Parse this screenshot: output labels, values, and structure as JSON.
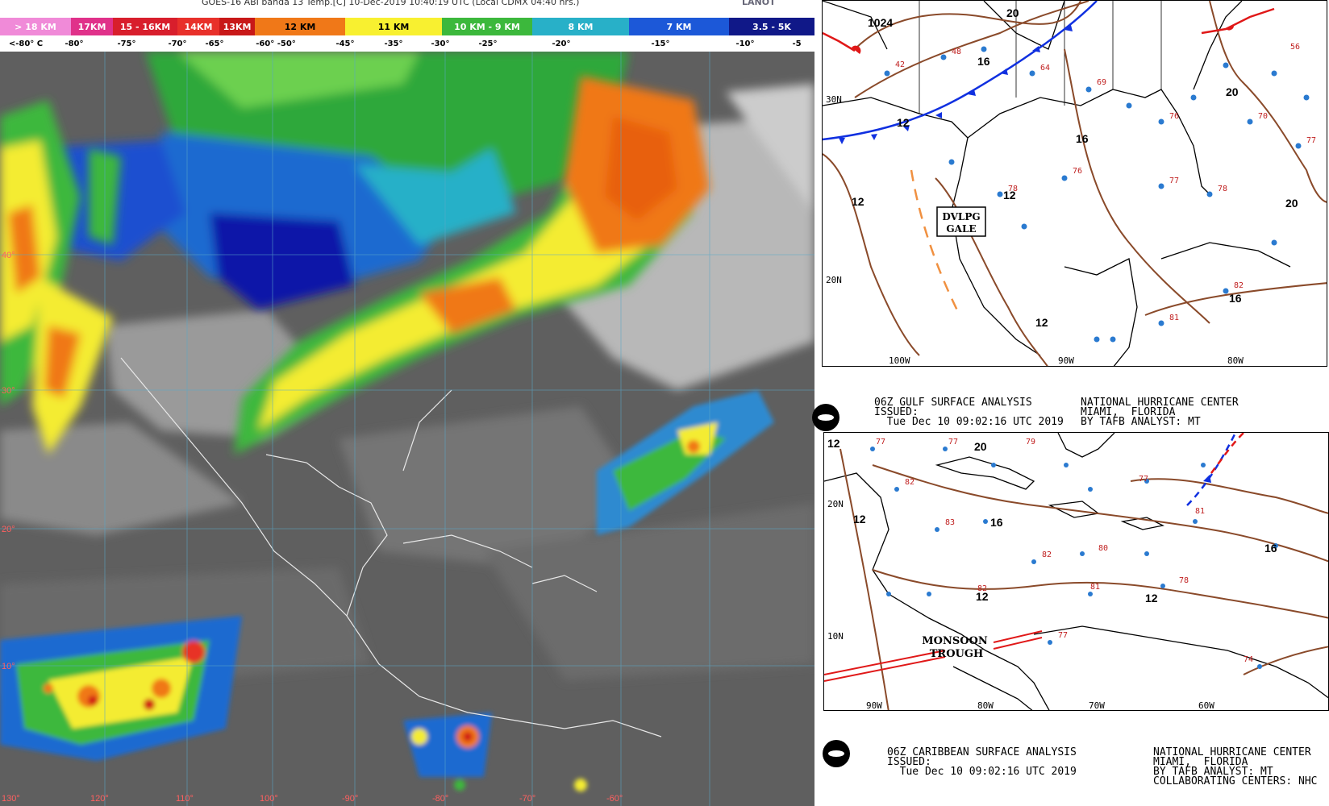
{
  "satellite": {
    "title": "GOES-16 ABI banda 13 Temp.[C] 10-Dec-2019 10:40:19 UTC (Local CDMX 04:40 hrs.)",
    "logo_text": "LANOT",
    "color_bar": [
      {
        "label": "> 18 KM",
        "bg": "#f08ad8",
        "fg": "#ffffff"
      },
      {
        "label": "17KM",
        "bg": "#e0318a",
        "fg": "#ffffff"
      },
      {
        "label": "15 - 16KM",
        "bg": "#d81e2c",
        "fg": "#ffffff"
      },
      {
        "label": "14KM",
        "bg": "#e8302a",
        "fg": "#ffffff"
      },
      {
        "label": "13KM",
        "bg": "#c81818",
        "fg": "#ffffff"
      },
      {
        "label": "12 KM",
        "bg": "#f07818",
        "fg": "#000000"
      },
      {
        "label": "11 KM",
        "bg": "#f8f030",
        "fg": "#000000"
      },
      {
        "label": "10 KM - 9 KM",
        "bg": "#3cb83c",
        "fg": "#ffffff"
      },
      {
        "label": "8 KM",
        "bg": "#28b0c8",
        "fg": "#ffffff"
      },
      {
        "label": "7 KM",
        "bg": "#1c58d8",
        "fg": "#ffffff"
      },
      {
        "label": "3.5 - 5K",
        "bg": "#101888",
        "fg": "#ffffff"
      }
    ],
    "temps": [
      "<-80° C",
      "-80°",
      "-75°",
      "-70°",
      "-65°",
      "-60°  -50°",
      "-45°",
      "-35°",
      "-30°",
      "-25°",
      "-20°",
      "-15°",
      "-10°",
      "-5"
    ],
    "lon_labels": [
      "130°",
      "120°",
      "110°",
      "100°",
      "-90°",
      "-80°",
      "-70°",
      "-60°"
    ],
    "lat_labels": [
      "40°",
      "30°",
      "20°",
      "10°"
    ]
  },
  "gulf_chart": {
    "pressure_labels": [
      "1024",
      "20",
      "16",
      "12",
      "12",
      "16",
      "12",
      "20",
      "20",
      "16",
      "12"
    ],
    "box_line1": "DVLPG",
    "box_line2": "GALE",
    "lat_labels": [
      "30N",
      "20N"
    ],
    "lon_labels": [
      "100W",
      "90W",
      "80W"
    ],
    "caption_left": "06Z GULF SURFACE ANALYSIS\nISSUED:\n  Tue Dec 10 09:02:16 UTC 2019",
    "caption_right": "NATIONAL HURRICANE CENTER\nMIAMI,  FLORIDA\nBY TAFB ANALYST: MT"
  },
  "carib_chart": {
    "pressure_labels": [
      "12",
      "20",
      "16",
      "16",
      "12",
      "12",
      "12"
    ],
    "trough_line1": "MONSOON",
    "trough_line2": "TROUGH",
    "lat_labels": [
      "20N",
      "10N"
    ],
    "lon_labels": [
      "90W",
      "80W",
      "70W",
      "60W"
    ],
    "caption_left": "06Z CARIBBEAN SURFACE ANALYSIS\nISSUED:\n  Tue Dec 10 09:02:16 UTC 2019",
    "caption_right": "NATIONAL HURRICANE CENTER\nMIAMI,  FLORIDA\nBY TAFB ANALYST: MT\nCOLLABORATING CENTERS: NHC"
  },
  "colors": {
    "isobar": "#8a4a2a",
    "cold_front": "#1030e0",
    "warm_front": "#e01818",
    "station_blue": "#2a7ad0",
    "station_red": "#c02020"
  }
}
